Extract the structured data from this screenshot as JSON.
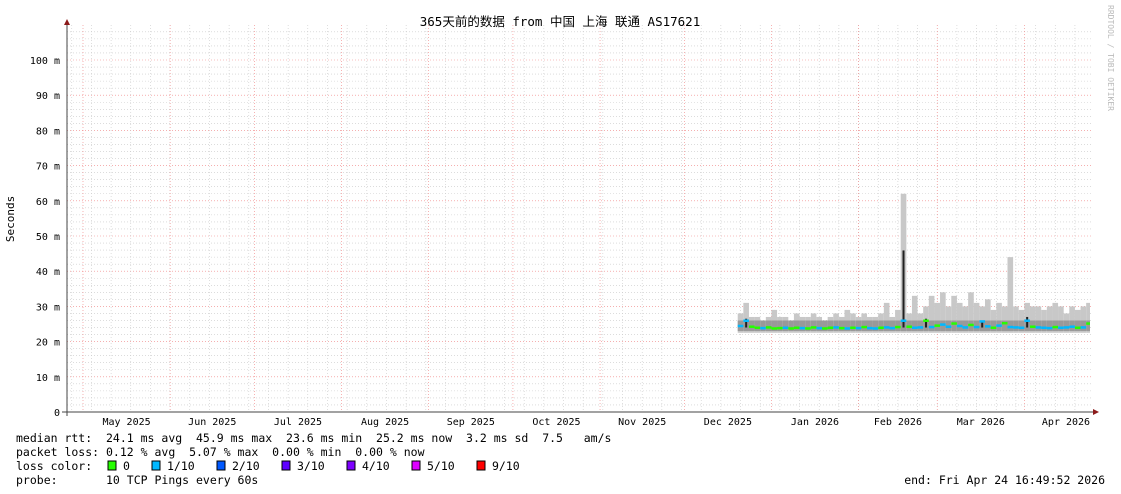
{
  "chart_data": {
    "type": "line",
    "title": "365天前的数据 from  中国 上海 联通 AS17621",
    "ylabel": "Seconds",
    "watermark": "RRDTOOL / TOBI OETIKER",
    "ylim": [
      0,
      110
    ],
    "y_ticks": [
      {
        "value": 0,
        "label": "0"
      },
      {
        "value": 10,
        "label": "10 m"
      },
      {
        "value": 20,
        "label": "20 m"
      },
      {
        "value": 30,
        "label": "30 m"
      },
      {
        "value": 40,
        "label": "40 m"
      },
      {
        "value": 50,
        "label": "50 m"
      },
      {
        "value": 60,
        "label": "60 m"
      },
      {
        "value": 70,
        "label": "70 m"
      },
      {
        "value": 80,
        "label": "80 m"
      },
      {
        "value": 90,
        "label": "90 m"
      },
      {
        "value": 100,
        "label": "100 m"
      }
    ],
    "x_range": [
      "2025-04-25",
      "2026-04-24"
    ],
    "x_ticks": [
      "May 2025",
      "Jun 2025",
      "Jul 2025",
      "Aug 2025",
      "Sep 2025",
      "Oct 2025",
      "Nov 2025",
      "Dec 2025",
      "Jan 2026",
      "Feb 2026",
      "Mar 2026",
      "Apr 2026"
    ],
    "grid": true,
    "series": {
      "start": "2025-12-20",
      "step_days": 2,
      "median_ms": [
        24.5,
        26.5,
        24.3,
        24.0,
        23.9,
        24.1,
        23.8,
        23.9,
        24.0,
        23.8,
        24.0,
        23.9,
        23.8,
        24.1,
        23.9,
        23.8,
        24.0,
        24.1,
        23.9,
        23.8,
        24.0,
        23.9,
        24.2,
        23.9,
        23.8,
        24.0,
        24.1,
        23.9,
        24.2,
        45.9,
        24.3,
        24.0,
        24.1,
        26.5,
        24.2,
        24.6,
        24.9,
        24.3,
        25.2,
        24.5,
        24.1,
        24.8,
        24.2,
        25.8,
        24.4,
        24.0,
        24.6,
        25.3,
        24.2,
        24.1,
        24.0,
        27.0,
        24.3,
        24.1,
        24.0,
        23.9,
        24.2,
        24.0,
        24.1,
        24.3,
        24.0,
        24.1,
        25.2
      ],
      "smoke_max_ms": [
        28,
        31,
        27,
        27,
        26,
        27,
        29,
        27,
        27,
        26,
        28,
        27,
        27,
        28,
        27,
        26,
        27,
        28,
        27,
        29,
        28,
        27,
        28,
        27,
        27,
        28,
        31,
        27,
        29,
        62,
        28,
        33,
        28,
        30,
        33,
        31,
        34,
        30,
        33,
        31,
        30,
        34,
        31,
        30,
        32,
        29,
        31,
        30,
        44,
        30,
        29,
        31,
        30,
        30,
        29,
        30,
        31,
        30,
        28,
        30,
        29,
        30,
        31
      ],
      "loss": [
        0.1,
        0.1,
        0,
        0,
        0.1,
        0,
        0,
        0,
        0.1,
        0,
        0,
        0.1,
        0,
        0,
        0.1,
        0,
        0,
        0.1,
        0,
        0.1,
        0,
        0.1,
        0,
        0.1,
        0.1,
        0,
        0.1,
        0.1,
        0,
        0.1,
        0,
        0.1,
        0.1,
        0,
        0.1,
        0,
        0.1,
        0.1,
        0,
        0.1,
        0.1,
        0,
        0.1,
        0.1,
        0.1,
        0,
        0.1,
        0,
        0.1,
        0.1,
        0.1,
        0.1,
        0,
        0.1,
        0.1,
        0.1,
        0,
        0.1,
        0.1,
        0.1,
        0,
        0.1,
        0
      ]
    },
    "colors": {
      "smoke": "#c8c8c8",
      "major_grid": "#f08080",
      "minor_grid": "#c8c8c8",
      "median_fallback": "#202020"
    }
  },
  "legend": {
    "median_rtt": "median rtt:  24.1 ms avg  45.9 ms max  23.6 ms min  25.2 ms now  3.2 ms sd  7.5   am/s",
    "packet_loss": "packet loss: 0.12 % avg  5.07 % max  0.00 % min  0.00 % now",
    "loss_color_label": "loss color:",
    "loss_colors": [
      {
        "label": "0",
        "color": "#26ff00"
      },
      {
        "label": "1/10",
        "color": "#00b8ff"
      },
      {
        "label": "2/10",
        "color": "#0059ff"
      },
      {
        "label": "3/10",
        "color": "#5e00ff"
      },
      {
        "label": "4/10",
        "color": "#7e00ff"
      },
      {
        "label": "5/10",
        "color": "#dd00ff"
      },
      {
        "label": "9/10",
        "color": "#ff0000"
      }
    ],
    "probe": "probe:       10 TCP Pings every 60s",
    "end": "end: Fri Apr 24 16:49:52 2026"
  }
}
